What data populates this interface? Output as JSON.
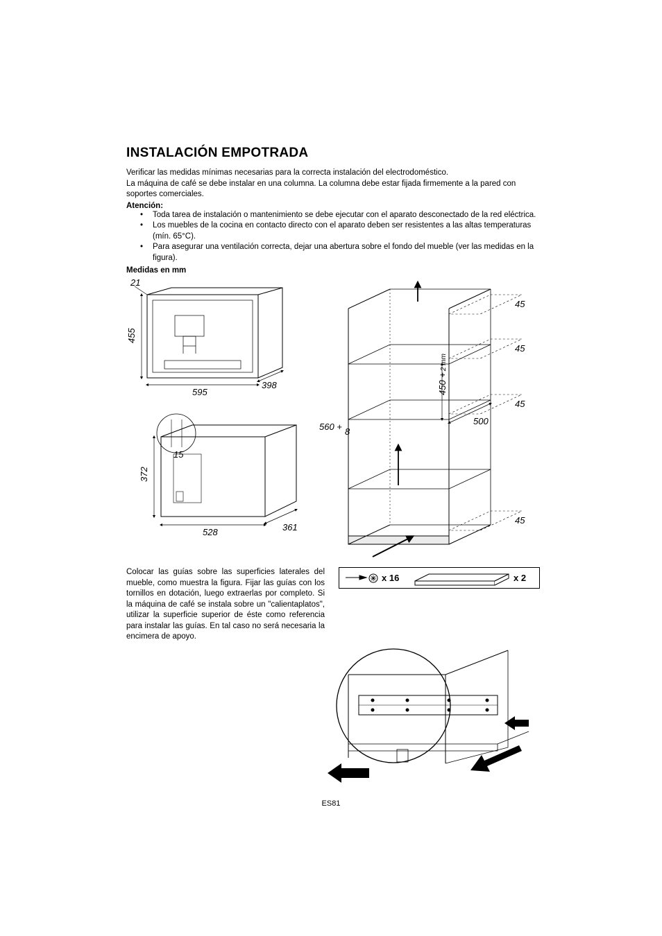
{
  "title": "INSTALACIÓN EMPOTRADA",
  "intro": "Verificar las medidas mínimas necesarias para la correcta instalación del electrodoméstico.\nLa máquina de café se debe instalar en una columna. La columna debe estar fijada firmemente a la pared con soportes comerciales.",
  "atencion_label": "Atención:",
  "atencion_items": [
    "Toda tarea de instalación o mantenimiento se debe ejecutar con el aparato desconectado de la red eléctrica.",
    "Los muebles de la cocina en contacto directo con el aparato deben ser resistentes a las altas temperaturas (mín. 65°C).",
    "Para asegurar una ventilación correcta, dejar una abertura sobre el fondo del mueble (ver las medidas en la figura)."
  ],
  "medidas_label": "Medidas en mm",
  "dimensions": {
    "front_height": "455",
    "front_width": "595",
    "front_depth": "398",
    "front_overhang": "21",
    "body_height": "372",
    "body_width": "528",
    "body_depth_rear": "361",
    "body_setback": "15",
    "cabinet_opening_w": "560 +",
    "cabinet_opening_w_tol": "8",
    "cabinet_opening_h": "450 +",
    "cabinet_opening_h_tol": "2 mm",
    "cabinet_depth": "500",
    "vent_top1": "45",
    "vent_top2": "45",
    "vent_mid": "45",
    "vent_bottom": "45"
  },
  "guide_text": "Colocar las guías sobre las superficies laterales del mueble, como muestra la figura. Fijar las guías con los tornillos en dotación, luego extraerlas por completo. Si la máquina de café se instala sobre un \"calientaplatos\", utilizar la superficie superior de éste como referencia para instalar las guías. En tal caso no será necesaria la encimera de apoyo.",
  "hardware": {
    "screw_count": "x 16",
    "bracket_count": "x 2"
  },
  "footer": "ES81",
  "colors": {
    "line": "#000000",
    "bg": "#ffffff",
    "arrow_fill": "#000000"
  },
  "stroke_width_thin": 1,
  "stroke_width_heavy": 1.6
}
